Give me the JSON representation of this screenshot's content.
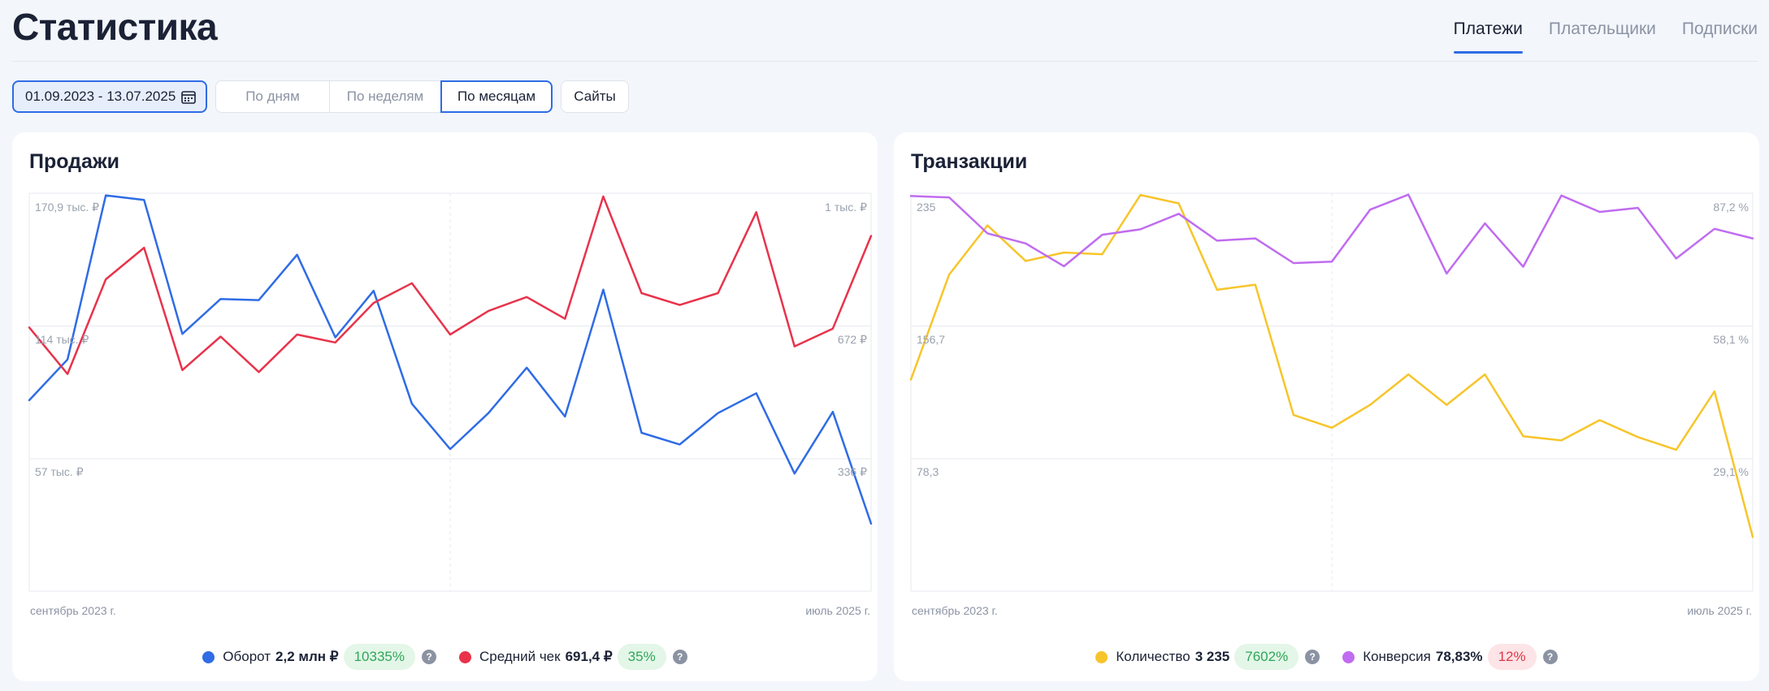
{
  "page": {
    "title": "Статистика"
  },
  "tabs": [
    {
      "label": "Платежи",
      "active": true
    },
    {
      "label": "Плательщики",
      "active": false
    },
    {
      "label": "Подписки",
      "active": false
    }
  ],
  "toolbar": {
    "date_range": "01.09.2023 - 13.07.2025",
    "group_by": [
      {
        "label": "По дням",
        "selected": false
      },
      {
        "label": "По неделям",
        "selected": false
      },
      {
        "label": "По месяцам",
        "selected": true
      }
    ],
    "sites_label": "Сайты"
  },
  "colors": {
    "accent": "#2f6ce5",
    "blue": "#2f6ce5",
    "red": "#e8334b",
    "yellow": "#f7c52b",
    "purple": "#c06cf0"
  },
  "chart_data": [
    {
      "type": "line",
      "title": "Продажи",
      "x_start_label": "сентябрь 2023 г.",
      "x_end_label": "июль 2025 г.",
      "left_ticks": [
        "170,9 тыс. ₽",
        "114 тыс. ₽",
        "57 тыс. ₽"
      ],
      "right_ticks": [
        "1 тыс. ₽",
        "672 ₽",
        "336 ₽"
      ],
      "left_ylim": [
        0,
        170.9
      ],
      "right_ylim": [
        0,
        1008
      ],
      "series": [
        {
          "name": "Оборот",
          "axis": "left",
          "color": "#2f6ce5",
          "values": [
            82,
            99.5,
            170,
            168,
            110.5,
            125.5,
            125,
            144.5,
            109,
            129,
            80.5,
            61,
            76.5,
            96,
            75,
            129.5,
            68,
            63,
            76.5,
            85,
            50.5,
            77,
            29
          ]
        },
        {
          "name": "Средний чек",
          "axis": "right",
          "color": "#e8334b",
          "values": [
            668,
            550,
            790,
            870,
            560,
            645,
            555,
            650,
            630,
            730,
            780,
            650,
            710,
            745,
            690,
            1000,
            755,
            725,
            755,
            960,
            620,
            665,
            900
          ]
        }
      ],
      "legend": [
        {
          "name": "Оборот",
          "value": "2,2 млн ₽",
          "change": "10335%",
          "trend": "good"
        },
        {
          "name": "Средний чек",
          "value": "691,4 ₽",
          "change": "35%",
          "trend": "good"
        }
      ]
    },
    {
      "type": "line",
      "title": "Транзакции",
      "x_start_label": "сентябрь 2023 г.",
      "x_end_label": "июль 2025 г.",
      "left_ticks": [
        "235",
        "156,7",
        "78,3"
      ],
      "right_ticks": [
        "87,2 %",
        "58,1 %",
        "29,1 %"
      ],
      "left_ylim": [
        0,
        235
      ],
      "right_ylim": [
        0,
        87.2
      ],
      "series": [
        {
          "name": "Количество",
          "axis": "left",
          "color": "#f7c52b",
          "values": [
            125,
            187,
            216,
            195,
            200,
            199,
            234,
            229,
            178,
            181,
            104,
            96.5,
            110,
            128,
            110,
            128,
            91.5,
            89,
            101,
            91,
            83.5,
            118,
            32
          ]
        },
        {
          "name": "Конверсия",
          "axis": "right",
          "color": "#c06cf0",
          "values": [
            86.6,
            86.3,
            78.4,
            76.2,
            71.2,
            78.1,
            79.3,
            82.7,
            76.8,
            77.3,
            71.9,
            72.2,
            83.6,
            86.9,
            69.6,
            80.6,
            71.1,
            86.7,
            83.1,
            84,
            72.9,
            79.4,
            77.3
          ]
        }
      ],
      "legend": [
        {
          "name": "Количество",
          "value": "3 235",
          "change": "7602%",
          "trend": "good"
        },
        {
          "name": "Конверсия",
          "value": "78,83%",
          "change": "12%",
          "trend": "bad"
        }
      ]
    }
  ]
}
